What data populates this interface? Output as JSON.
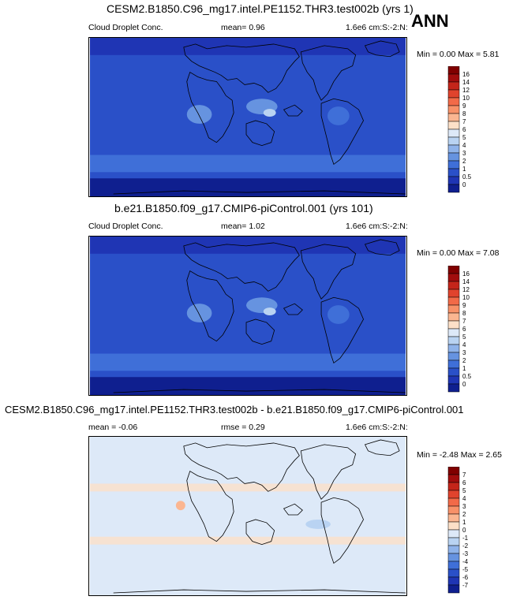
{
  "season": "ANN",
  "panels": [
    {
      "title": "CESM2.B1850.C96_mg17.intel.PE1152.THR3.test002b (yrs 1)",
      "variable": "Cloud Droplet Conc.",
      "stat": "mean=  0.96",
      "units": "1.6e6 cm:S:-2:N:",
      "minmax": "Min =  0.00 Max =  5.81",
      "colorbar_labels": [
        "16",
        "14",
        "12",
        "10",
        "9",
        "8",
        "7",
        "6",
        "5",
        "4",
        "3",
        "2",
        "1",
        "0.5",
        "0"
      ],
      "colors": [
        "#800000",
        "#a10d0d",
        "#c4251a",
        "#e0432d",
        "#f26a48",
        "#f89168",
        "#fbb691",
        "#fde0c8",
        "#dde9f8",
        "#b9d3f2",
        "#8fb3ea",
        "#6693e0",
        "#3f6fd8",
        "#2a50c8",
        "#1f35b4",
        "#0f1f8f"
      ],
      "dominant_fill": "#2a50c8"
    },
    {
      "title": "b.e21.B1850.f09_g17.CMIP6-piControl.001 (yrs 101)",
      "variable": "Cloud Droplet Conc.",
      "stat": "mean=  1.02",
      "units": "1.6e6 cm:S:-2:N:",
      "minmax": "Min =  0.00 Max =  7.08",
      "colorbar_labels": [
        "16",
        "14",
        "12",
        "10",
        "9",
        "8",
        "7",
        "6",
        "5",
        "4",
        "3",
        "2",
        "1",
        "0.5",
        "0"
      ],
      "colors": [
        "#800000",
        "#a10d0d",
        "#c4251a",
        "#e0432d",
        "#f26a48",
        "#f89168",
        "#fbb691",
        "#fde0c8",
        "#dde9f8",
        "#b9d3f2",
        "#8fb3ea",
        "#6693e0",
        "#3f6fd8",
        "#2a50c8",
        "#1f35b4",
        "#0f1f8f"
      ],
      "dominant_fill": "#2a50c8"
    },
    {
      "title": "CESM2.B1850.C96_mg17.intel.PE1152.THR3.test002b - b.e21.B1850.f09_g17.CMIP6-piControl.001",
      "stat": "mean =  -0.06",
      "rmse": "rmse =   0.29",
      "units": "1.6e6 cm:S:-2:N:",
      "minmax": "Min = -2.48 Max =  2.65",
      "colorbar_labels": [
        "7",
        "6",
        "5",
        "4",
        "3",
        "2",
        "1",
        "0",
        "-1",
        "-2",
        "-3",
        "-4",
        "-5",
        "-6",
        "-7"
      ],
      "colors": [
        "#800000",
        "#a10d0d",
        "#c4251a",
        "#e0432d",
        "#f26a48",
        "#f89168",
        "#fbb691",
        "#fde0c8",
        "#dde9f8",
        "#b9d3f2",
        "#8fb3ea",
        "#6693e0",
        "#3f6fd8",
        "#2a50c8",
        "#1f35b4",
        "#0f1f8f"
      ],
      "dominant_fill": "#dde9f8"
    }
  ],
  "chart_data": [
    {
      "type": "heatmap",
      "title": "CESM2.B1850.C96_mg17.intel.PE1152.THR3.test002b (yrs 1)",
      "variable": "Cloud Droplet Conc.",
      "mean": 0.96,
      "min": 0.0,
      "max": 5.81,
      "levels": [
        0,
        0.5,
        1,
        2,
        3,
        4,
        5,
        6,
        7,
        8,
        9,
        10,
        12,
        14,
        16
      ]
    },
    {
      "type": "heatmap",
      "title": "b.e21.B1850.f09_g17.CMIP6-piControl.001 (yrs 101)",
      "variable": "Cloud Droplet Conc.",
      "mean": 1.02,
      "min": 0.0,
      "max": 7.08,
      "levels": [
        0,
        0.5,
        1,
        2,
        3,
        4,
        5,
        6,
        7,
        8,
        9,
        10,
        12,
        14,
        16
      ]
    },
    {
      "type": "heatmap",
      "title": "CESM2.B1850.C96_mg17.intel.PE1152.THR3.test002b - b.e21.B1850.f09_g17.CMIP6-piControl.001",
      "mean": -0.06,
      "rmse": 0.29,
      "min": -2.48,
      "max": 2.65,
      "levels": [
        -7,
        -6,
        -5,
        -4,
        -3,
        -2,
        -1,
        0,
        1,
        2,
        3,
        4,
        5,
        6,
        7
      ]
    }
  ]
}
